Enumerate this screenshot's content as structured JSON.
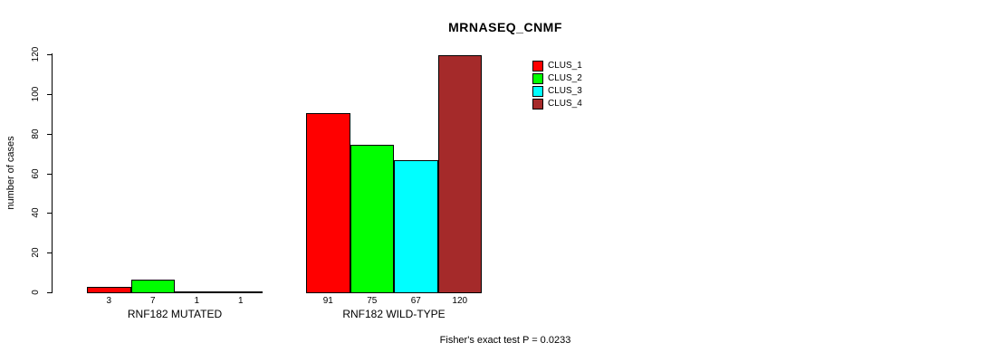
{
  "chart_data": {
    "type": "bar",
    "title": "MRNASEQ_CNMF",
    "ylabel": "number of cases",
    "xlabel": "",
    "ylim": [
      0,
      120
    ],
    "yticks": [
      0,
      20,
      40,
      60,
      80,
      100,
      120
    ],
    "grid": false,
    "legend_position": "top-right",
    "categories": [
      "RNF182 MUTATED",
      "RNF182 WILD-TYPE"
    ],
    "series": [
      {
        "name": "CLUS_1",
        "color": "#ff0000",
        "values": [
          3,
          91
        ]
      },
      {
        "name": "CLUS_2",
        "color": "#00ff00",
        "values": [
          7,
          75
        ]
      },
      {
        "name": "CLUS_3",
        "color": "#00ffff",
        "values": [
          1,
          67
        ]
      },
      {
        "name": "CLUS_4",
        "color": "#a52a2a",
        "values": [
          1,
          120
        ]
      }
    ],
    "bar_value_labels": [
      [
        "3",
        "7",
        "1",
        "1"
      ],
      [
        "91",
        "75",
        "67",
        "120"
      ]
    ],
    "annotation": "Fisher's exact test P = 0.0233",
    "axis_color": "#000000",
    "bar_border_color": "#000000"
  }
}
